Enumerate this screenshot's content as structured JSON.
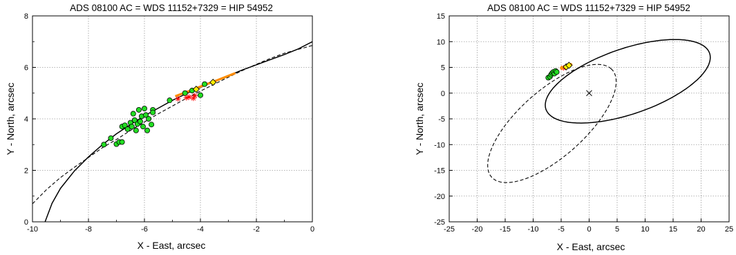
{
  "chart_data": [
    {
      "type": "scatter",
      "title": "ADS 08100 AC = WDS 11152+7329 = HIP 54952",
      "xlabel": "X - East, arcsec",
      "ylabel": "Y - North, arcsec",
      "xlim": [
        -10,
        0
      ],
      "ylim": [
        0,
        8
      ],
      "xticks": [
        -10,
        -8,
        -6,
        -4,
        -2,
        0
      ],
      "yticks": [
        0,
        2,
        4,
        6,
        8
      ],
      "tick_labels_x": [
        "-10",
        "-8",
        "-6",
        "-4",
        "-2",
        "0"
      ],
      "tick_labels_y": [
        "0",
        "2",
        "4",
        "6",
        "8"
      ],
      "grid": true,
      "legend": "none",
      "colors": {
        "solid": "#000000",
        "dashed": "#000000",
        "green": "#22dd22",
        "yellow": "#ffee00",
        "orange": "#ff8c00",
        "red": "#ff0000"
      },
      "curves": [
        {
          "style": "solid",
          "x": [
            -9.55,
            -9.3,
            -9,
            -8.5,
            -8,
            -7.5,
            -7,
            -6.5,
            -6,
            -5.5,
            -5,
            -4.5,
            -4,
            -3.5,
            -3,
            -2.5,
            -2,
            -1.5,
            -1,
            -0.5,
            0
          ],
          "y": [
            0,
            0.72,
            1.3,
            1.98,
            2.52,
            3.0,
            3.42,
            3.78,
            4.12,
            4.42,
            4.72,
            4.98,
            5.22,
            5.45,
            5.68,
            5.9,
            6.1,
            6.3,
            6.5,
            6.72,
            7.0
          ]
        },
        {
          "style": "dashed",
          "x": [
            -10,
            -9.5,
            -9,
            -8.5,
            -8,
            -7.5,
            -7,
            -6.5,
            -6,
            -5.5,
            -5,
            -4.5,
            -4,
            -3.5,
            -3,
            -2.5,
            -2,
            -1.5,
            -1,
            -0.5,
            0
          ],
          "y": [
            0.7,
            1.25,
            1.72,
            2.12,
            2.5,
            2.88,
            3.2,
            3.55,
            3.88,
            4.2,
            4.5,
            4.8,
            5.08,
            5.35,
            5.62,
            5.88,
            6.12,
            6.35,
            6.55,
            6.7,
            6.85
          ]
        },
        {
          "style": "orange",
          "x": [
            -4.9,
            -4.4,
            -3.9,
            -3.4,
            -2.75
          ],
          "y": [
            4.88,
            5.08,
            5.3,
            5.5,
            5.78
          ]
        }
      ],
      "points_green": [
        {
          "x": -7.45,
          "y": 3.0
        },
        {
          "x": -7.2,
          "y": 3.25
        },
        {
          "x": -7.0,
          "y": 3.02
        },
        {
          "x": -6.9,
          "y": 3.1
        },
        {
          "x": -6.8,
          "y": 3.1
        },
        {
          "x": -6.8,
          "y": 3.7
        },
        {
          "x": -6.7,
          "y": 3.75
        },
        {
          "x": -6.6,
          "y": 3.6
        },
        {
          "x": -6.5,
          "y": 3.85
        },
        {
          "x": -6.45,
          "y": 3.7
        },
        {
          "x": -6.4,
          "y": 4.2
        },
        {
          "x": -6.35,
          "y": 3.95
        },
        {
          "x": -6.3,
          "y": 3.55
        },
        {
          "x": -6.25,
          "y": 3.8
        },
        {
          "x": -6.2,
          "y": 4.35
        },
        {
          "x": -6.15,
          "y": 3.9
        },
        {
          "x": -6.1,
          "y": 4.1
        },
        {
          "x": -6.05,
          "y": 3.7
        },
        {
          "x": -6.0,
          "y": 4.4
        },
        {
          "x": -5.95,
          "y": 4.15
        },
        {
          "x": -5.9,
          "y": 3.55
        },
        {
          "x": -5.85,
          "y": 4.0
        },
        {
          "x": -5.75,
          "y": 3.78
        },
        {
          "x": -5.7,
          "y": 4.35
        },
        {
          "x": -5.7,
          "y": 4.25
        },
        {
          "x": -5.1,
          "y": 4.72
        },
        {
          "x": -4.55,
          "y": 5.0
        },
        {
          "x": -4.3,
          "y": 5.1
        },
        {
          "x": -4.0,
          "y": 4.92
        },
        {
          "x": -3.85,
          "y": 5.35
        }
      ],
      "points_yellow": [
        {
          "x": -4.15,
          "y": 5.15
        },
        {
          "x": -3.55,
          "y": 5.42
        }
      ],
      "points_red": [
        {
          "x": -4.8,
          "y": 4.78
        },
        {
          "x": -4.5,
          "y": 4.82
        },
        {
          "x": -4.4,
          "y": 4.85
        },
        {
          "x": -4.25,
          "y": 4.8
        },
        {
          "x": -4.2,
          "y": 4.9
        }
      ]
    },
    {
      "type": "scatter",
      "title": "ADS 08100 AC = WDS 11152+7329 = HIP 54952",
      "xlabel": "X - East, arcsec",
      "ylabel": "Y - North, arcsec",
      "xlim": [
        -25,
        25
      ],
      "ylim": [
        -25,
        15
      ],
      "xticks": [
        -25,
        -20,
        -15,
        -10,
        -5,
        0,
        5,
        10,
        15,
        20,
        25
      ],
      "yticks": [
        -25,
        -20,
        -15,
        -10,
        -5,
        0,
        5,
        10,
        15
      ],
      "tick_labels_x": [
        "-25",
        "-20",
        "-15",
        "-10",
        "-5",
        "0",
        "5",
        "10",
        "15",
        "20",
        "25"
      ],
      "tick_labels_y": [
        "-25",
        "-20",
        "-15",
        "-10",
        "-5",
        "0",
        "5",
        "10",
        "15"
      ],
      "grid": true,
      "legend": "none",
      "colors": {
        "solid": "#000000",
        "dashed": "#000000",
        "green": "#22dd22",
        "yellow": "#ffee00",
        "orange": "#ff8c00",
        "red": "#ff0000"
      },
      "ellipses": [
        {
          "style": "solid",
          "cx": 6.9,
          "cy": 2.3,
          "a": 15.6,
          "b": 6.3,
          "angle_deg": 21
        },
        {
          "style": "dashed",
          "cx": -6.65,
          "cy": -5.9,
          "a": 15.0,
          "b": 6.2,
          "angle_deg": 45
        }
      ],
      "center_marker": {
        "x": 0,
        "y": 0,
        "symbol": "x"
      },
      "points_green": [
        {
          "x": -7.3,
          "y": 3.0
        },
        {
          "x": -7.0,
          "y": 3.2
        },
        {
          "x": -6.8,
          "y": 3.6
        },
        {
          "x": -6.6,
          "y": 3.9
        },
        {
          "x": -6.4,
          "y": 4.1
        },
        {
          "x": -6.2,
          "y": 3.8
        },
        {
          "x": -6.0,
          "y": 4.3
        },
        {
          "x": -5.8,
          "y": 4.1
        }
      ],
      "points_yellow": [
        {
          "x": -4.1,
          "y": 5.1
        },
        {
          "x": -3.6,
          "y": 5.4
        }
      ],
      "points_red": [
        {
          "x": -4.6,
          "y": 4.9
        }
      ],
      "points_orange": [
        {
          "x": -4.9,
          "y": 4.9
        },
        {
          "x": -3.3,
          "y": 5.5
        }
      ]
    }
  ]
}
